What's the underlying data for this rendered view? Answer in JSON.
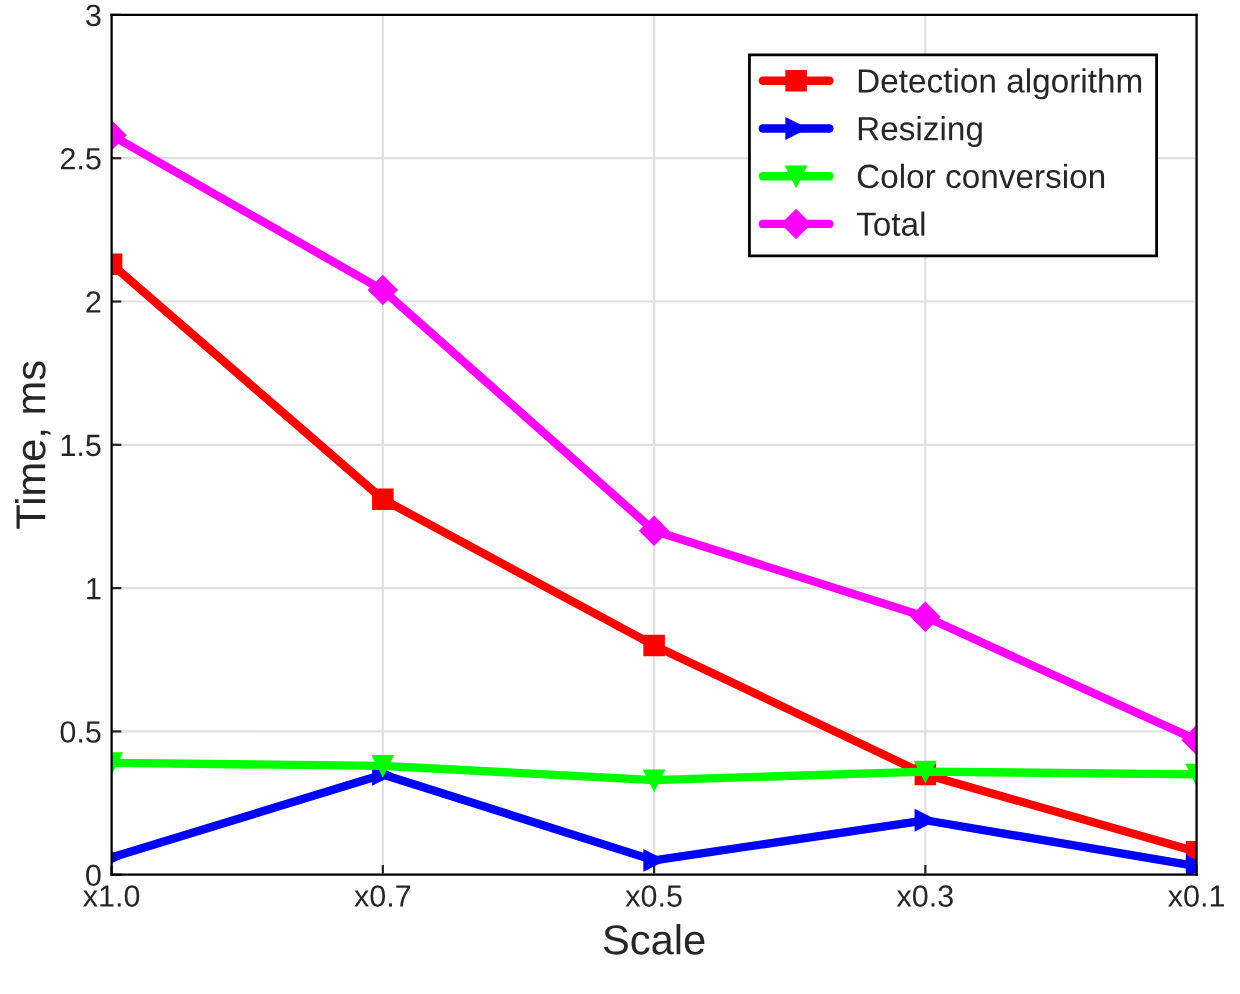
{
  "chart_data": {
    "type": "line",
    "xlabel": "Scale",
    "ylabel": "Time, ms",
    "categories": [
      "x1.0",
      "x0.7",
      "x0.5",
      "x0.3",
      "x0.1"
    ],
    "series": [
      {
        "name": "Detection algorithm",
        "color": "#ff0000",
        "marker": "square",
        "values": [
          2.13,
          1.31,
          0.8,
          0.35,
          0.08
        ]
      },
      {
        "name": "Resizing",
        "color": "#0000ff",
        "marker": "triangle-right",
        "values": [
          0.06,
          0.35,
          0.05,
          0.19,
          0.03
        ]
      },
      {
        "name": "Color conversion",
        "color": "#00ff00",
        "marker": "triangle-down",
        "values": [
          0.39,
          0.38,
          0.33,
          0.36,
          0.35
        ]
      },
      {
        "name": "Total",
        "color": "#ff00ff",
        "marker": "diamond",
        "values": [
          2.58,
          2.04,
          1.2,
          0.9,
          0.47
        ]
      }
    ],
    "ylim": [
      0,
      3
    ],
    "yticks": [
      0,
      0.5,
      1,
      1.5,
      2,
      2.5,
      3
    ],
    "grid": true,
    "legend": "top right",
    "line_style": "solid"
  }
}
